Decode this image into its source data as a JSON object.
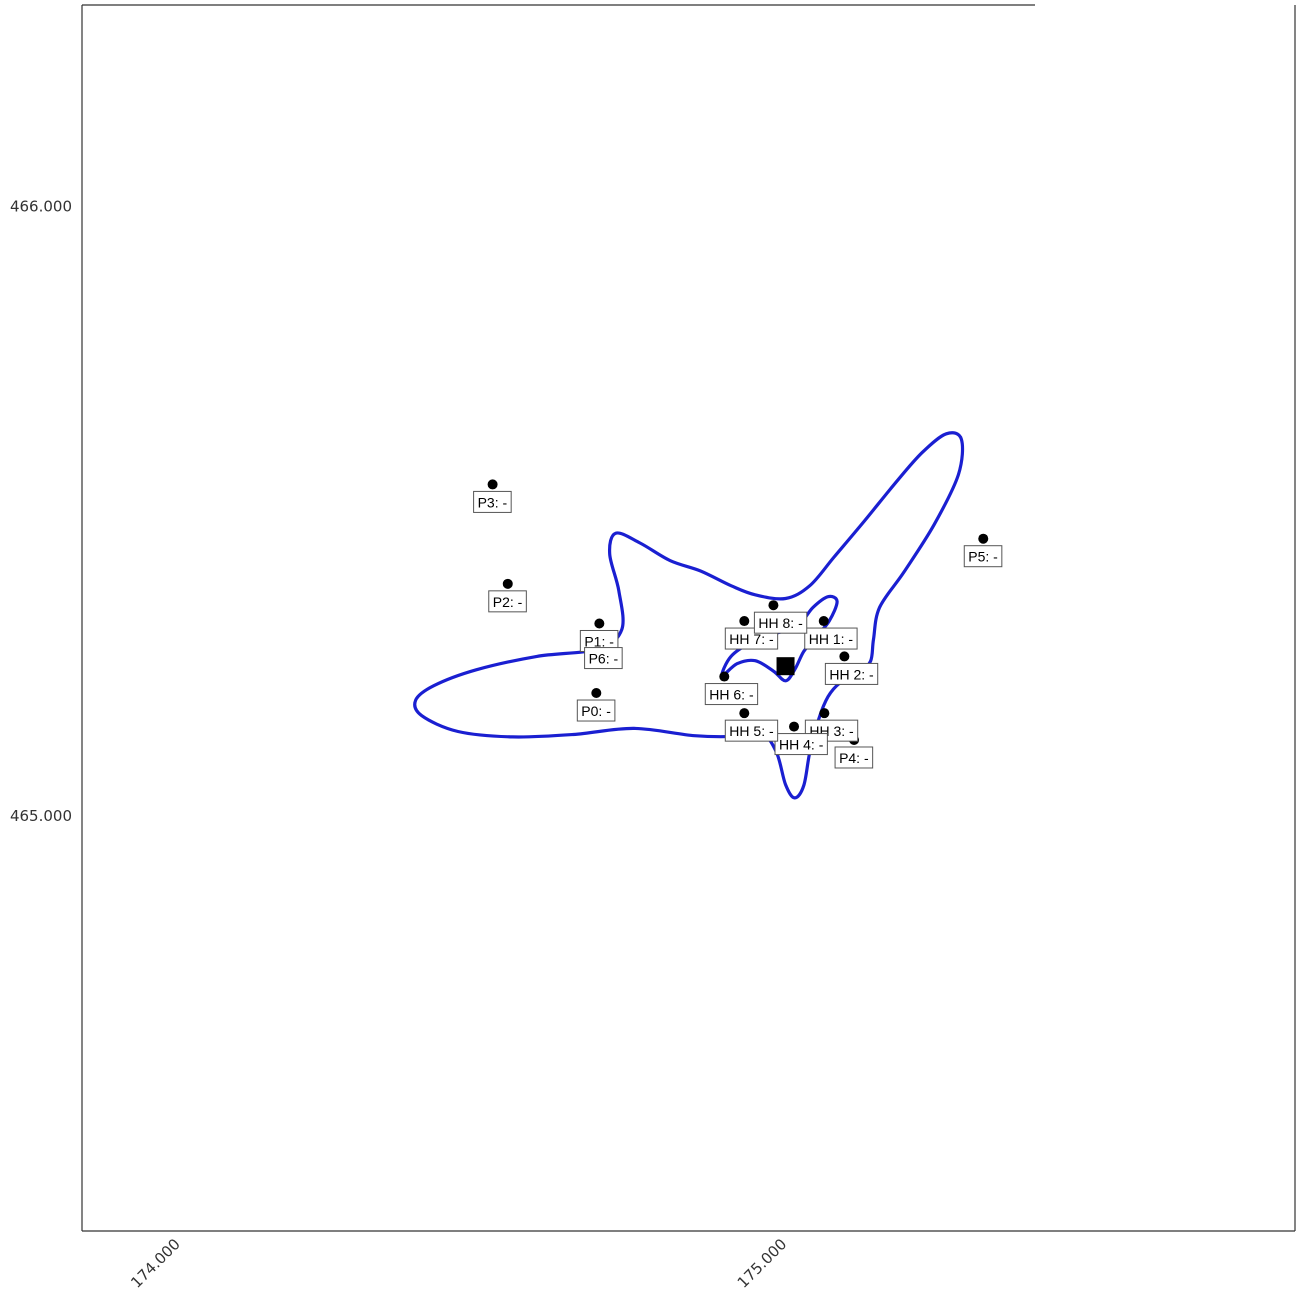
{
  "chart_data": {
    "type": "scatter",
    "title": "",
    "xlabel": "",
    "ylabel": "",
    "x_ticks": [
      {
        "value": 174.0,
        "label": "174.000"
      },
      {
        "value": 175.0,
        "label": "175.000"
      }
    ],
    "y_ticks": [
      {
        "value": 466.0,
        "label": "466.000"
      },
      {
        "value": 465.0,
        "label": "465.000"
      }
    ],
    "xlim": [
      173.85,
      175.85
    ],
    "ylim": [
      464.32,
      466.33
    ],
    "grid": false,
    "legend": "none",
    "colors": {
      "contour": "#1a1fd1",
      "points": "#000000",
      "source": "#000000",
      "frame": "#333333"
    },
    "source": {
      "name": "source",
      "x": 175.01,
      "y": 465.246
    },
    "points": [
      {
        "label": "P0: -",
        "x": 174.698,
        "y": 465.202
      },
      {
        "label": "P1: -",
        "x": 174.703,
        "y": 465.316
      },
      {
        "label": "P2: -",
        "x": 174.552,
        "y": 465.381
      },
      {
        "label": "P3: -",
        "x": 174.527,
        "y": 465.544
      },
      {
        "label": "P4: -",
        "x": 175.123,
        "y": 465.125
      },
      {
        "label": "P5: -",
        "x": 175.336,
        "y": 465.455
      },
      {
        "label": "P6: -",
        "x": 174.71,
        "y": 465.288
      },
      {
        "label": "HH 1: -",
        "x": 175.073,
        "y": 465.32
      },
      {
        "label": "HH 2: -",
        "x": 175.107,
        "y": 465.262
      },
      {
        "label": "HH 3: -",
        "x": 175.074,
        "y": 465.169
      },
      {
        "label": "HH 4: -",
        "x": 175.024,
        "y": 465.147
      },
      {
        "label": "HH 5: -",
        "x": 174.942,
        "y": 465.169
      },
      {
        "label": "HH 6: -",
        "x": 174.909,
        "y": 465.229
      },
      {
        "label": "HH 7: -",
        "x": 174.942,
        "y": 465.32
      },
      {
        "label": "HH 8: -",
        "x": 174.99,
        "y": 465.346
      }
    ],
    "contours": [
      {
        "outline": [
          [
            175.01,
            465.357
          ],
          [
            175.05,
            465.378
          ],
          [
            175.09,
            465.425
          ],
          [
            175.14,
            465.484
          ],
          [
            175.19,
            465.545
          ],
          [
            175.235,
            465.596
          ],
          [
            175.275,
            465.627
          ],
          [
            175.3,
            465.618
          ],
          [
            175.295,
            465.56
          ],
          [
            175.255,
            465.478
          ],
          [
            175.205,
            465.4
          ],
          [
            175.165,
            465.342
          ],
          [
            175.155,
            465.29
          ],
          [
            175.15,
            465.254
          ],
          [
            175.13,
            465.235
          ],
          [
            175.1,
            465.219
          ],
          [
            175.08,
            465.196
          ],
          [
            175.065,
            465.16
          ],
          [
            175.05,
            465.105
          ],
          [
            175.04,
            465.05
          ],
          [
            175.025,
            465.03
          ],
          [
            175.01,
            465.052
          ],
          [
            174.995,
            465.105
          ],
          [
            174.97,
            465.137
          ],
          [
            174.93,
            465.131
          ],
          [
            174.86,
            465.132
          ],
          [
            174.76,
            465.144
          ],
          [
            174.66,
            465.134
          ],
          [
            174.56,
            465.13
          ],
          [
            174.47,
            465.139
          ],
          [
            174.41,
            465.165
          ],
          [
            174.4,
            465.19
          ],
          [
            174.43,
            465.214
          ],
          [
            174.5,
            465.24
          ],
          [
            174.6,
            465.262
          ],
          [
            174.7,
            465.274
          ],
          [
            174.74,
            465.306
          ],
          [
            174.735,
            465.37
          ],
          [
            174.72,
            465.43
          ],
          [
            174.73,
            465.464
          ],
          [
            174.77,
            465.448
          ],
          [
            174.82,
            465.419
          ],
          [
            174.87,
            465.402
          ],
          [
            174.92,
            465.378
          ],
          [
            174.96,
            465.363
          ],
          [
            175.01,
            465.357
          ]
        ]
      },
      {
        "outline": [
          [
            174.905,
            465.23
          ],
          [
            174.92,
            465.262
          ],
          [
            174.955,
            465.286
          ],
          [
            174.995,
            465.3
          ],
          [
            175.03,
            465.312
          ],
          [
            175.055,
            465.342
          ],
          [
            175.08,
            465.36
          ],
          [
            175.095,
            465.352
          ],
          [
            175.082,
            465.32
          ],
          [
            175.06,
            465.294
          ],
          [
            175.04,
            465.27
          ],
          [
            175.025,
            465.24
          ],
          [
            175.01,
            465.222
          ],
          [
            174.99,
            465.238
          ],
          [
            174.96,
            465.255
          ],
          [
            174.93,
            465.25
          ],
          [
            174.905,
            465.23
          ]
        ]
      }
    ]
  }
}
